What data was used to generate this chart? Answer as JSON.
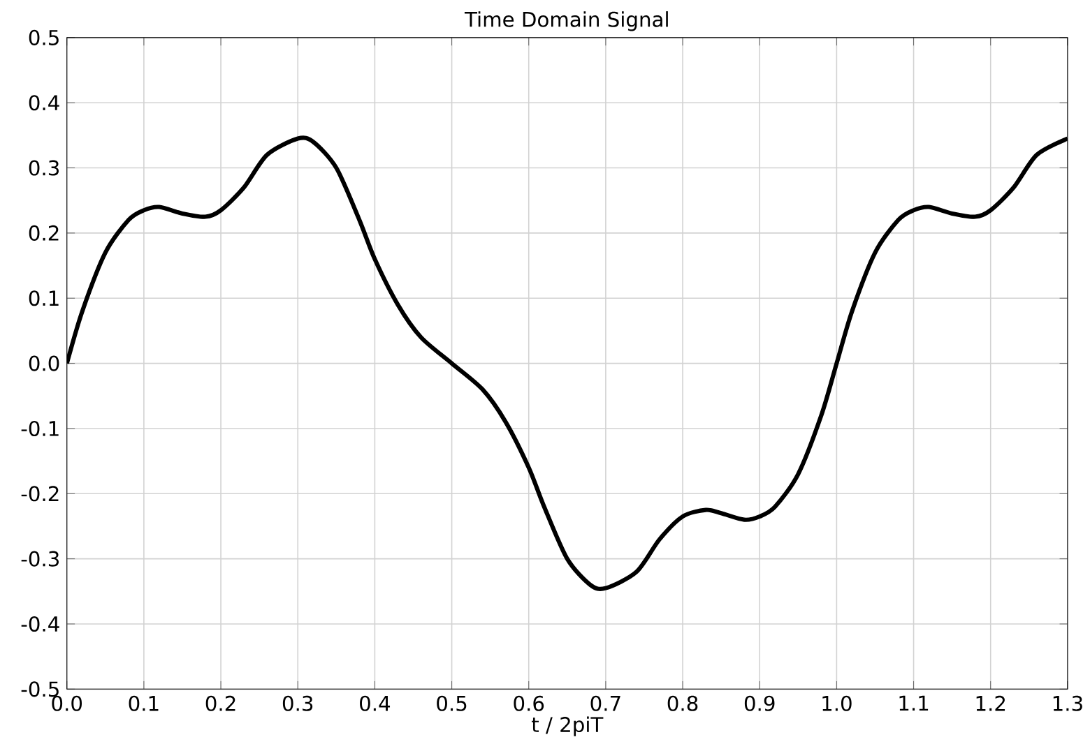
{
  "chart_data": {
    "type": "line",
    "title": "Time Domain Signal",
    "xlabel": "t / 2piT",
    "x": [
      0,
      0.02,
      0.05,
      0.08,
      0.1,
      0.12,
      0.15,
      0.18,
      0.2,
      0.23,
      0.26,
      0.3,
      0.32,
      0.35,
      0.38,
      0.4,
      0.43,
      0.46,
      0.5,
      0.54,
      0.57,
      0.6,
      0.62,
      0.65,
      0.68,
      0.7,
      0.74,
      0.77,
      0.8,
      0.83,
      0.85,
      0.88,
      0.9,
      0.92,
      0.95,
      0.98,
      1.0,
      1.02,
      1.05,
      1.08,
      1.1,
      1.12,
      1.15,
      1.18,
      1.2,
      1.23,
      1.26,
      1.3
    ],
    "series": [
      {
        "color": "#000000",
        "values": [
          0,
          0.08,
          0.17,
          0.22,
          0.235,
          0.24,
          0.23,
          0.225,
          0.235,
          0.27,
          0.32,
          0.345,
          0.34,
          0.3,
          0.22,
          0.16,
          0.09,
          0.04,
          0,
          -0.04,
          -0.09,
          -0.16,
          -0.22,
          -0.3,
          -0.34,
          -0.345,
          -0.32,
          -0.27,
          -0.235,
          -0.225,
          -0.23,
          -0.24,
          -0.235,
          -0.22,
          -0.17,
          -0.08,
          0,
          0.08,
          0.17,
          0.22,
          0.235,
          0.24,
          0.23,
          0.225,
          0.235,
          0.27,
          0.32,
          0.345
        ]
      }
    ],
    "xlim": [
      0,
      1.3
    ],
    "ylim": [
      -0.5,
      0.5
    ],
    "xticks": [
      {
        "value": 0,
        "label": "0.0"
      },
      {
        "value": 0.1,
        "label": "0.1"
      },
      {
        "value": 0.2,
        "label": "0.2"
      },
      {
        "value": 0.3,
        "label": "0.3"
      },
      {
        "value": 0.4,
        "label": "0.4"
      },
      {
        "value": 0.5,
        "label": "0.5"
      },
      {
        "value": 0.6,
        "label": "0.6"
      },
      {
        "value": 0.7,
        "label": "0.7"
      },
      {
        "value": 0.8,
        "label": "0.8"
      },
      {
        "value": 0.9,
        "label": "0.9"
      },
      {
        "value": 1.0,
        "label": "1.0"
      },
      {
        "value": 1.1,
        "label": "1.1"
      },
      {
        "value": 1.2,
        "label": "1.2"
      },
      {
        "value": 1.3,
        "label": "1.3"
      }
    ],
    "yticks": [
      {
        "value": -0.5,
        "label": "-0.5"
      },
      {
        "value": -0.4,
        "label": "-0.4"
      },
      {
        "value": -0.3,
        "label": "-0.3"
      },
      {
        "value": -0.2,
        "label": "-0.2"
      },
      {
        "value": -0.1,
        "label": "-0.1"
      },
      {
        "value": 0,
        "label": "0.0"
      },
      {
        "value": 0.1,
        "label": "0.1"
      },
      {
        "value": 0.2,
        "label": "0.2"
      },
      {
        "value": 0.3,
        "label": "0.3"
      },
      {
        "value": 0.4,
        "label": "0.4"
      },
      {
        "value": 0.5,
        "label": "0.5"
      }
    ],
    "grid": true,
    "marker": "none",
    "line_style": "solid"
  }
}
